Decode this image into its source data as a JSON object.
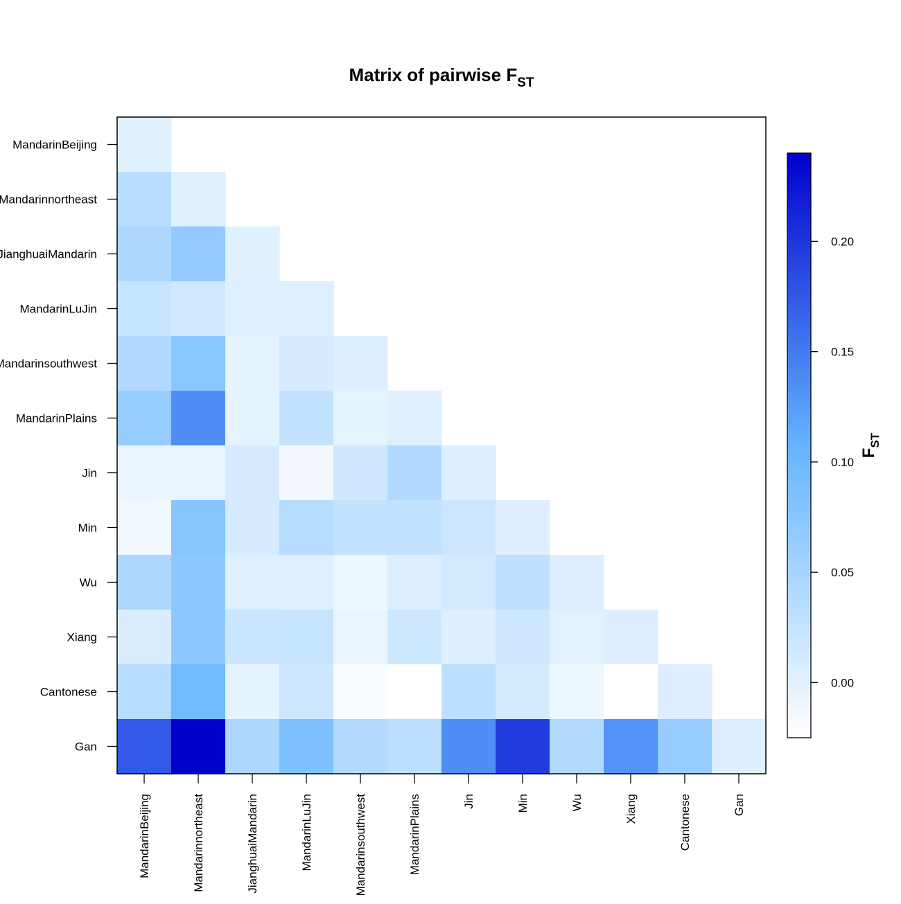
{
  "chart_data": {
    "type": "heatmap",
    "title": "Matrix of pairwise F",
    "title_subscript": "ST",
    "colorbar_label": "F",
    "colorbar_label_subscript": "ST",
    "categories": [
      "MandarinBeijing",
      "Mandarinnortheast",
      "JianghuaiMandarin",
      "MandarinLuJin",
      "Mandarinsouthwest",
      "MandarinPlains",
      "Jin",
      "Min",
      "Wu",
      "Xiang",
      "Cantonese",
      "Gan"
    ],
    "row_display_labels": [
      "MandarinBeijing",
      "Mandarinnortheast",
      "JianghuaiMandarin",
      "MandarinLuJin",
      "Mandarinsouthwest",
      "MandarinPlains",
      "Jin",
      "Min",
      "Wu",
      "Xiang",
      "Cantonese",
      "Gan"
    ],
    "col_display_labels": [
      "MandarinBeijing",
      "Mandarinnortheast",
      "JianghuaiMandarin",
      "MandarinLuJin",
      "Mandarinsouthwest",
      "MandarinPlains",
      "Jin",
      "Min",
      "Wu",
      "Xiang",
      "Cantonese",
      "Gan"
    ],
    "matrix": [
      [
        0.002
      ],
      [
        0.035,
        0.002
      ],
      [
        0.045,
        0.068,
        0.002
      ],
      [
        0.025,
        0.015,
        0.003,
        0.003
      ],
      [
        0.042,
        0.075,
        -0.003,
        0.01,
        0.005
      ],
      [
        0.065,
        0.135,
        -0.003,
        0.027,
        -0.003,
        0.003
      ],
      [
        -0.005,
        -0.005,
        0.01,
        -0.015,
        0.017,
        0.042,
        0.005
      ],
      [
        -0.012,
        0.078,
        0.01,
        0.037,
        0.027,
        0.027,
        0.019,
        0.005
      ],
      [
        0.045,
        0.073,
        0.003,
        0.003,
        -0.01,
        0.005,
        0.013,
        0.03,
        0.005
      ],
      [
        0.007,
        0.073,
        0.021,
        0.023,
        -0.005,
        0.018,
        0.005,
        0.017,
        -0.001,
        0.005
      ],
      [
        0.037,
        0.097,
        -0.003,
        0.019,
        -0.02,
        -0.025,
        0.032,
        0.011,
        -0.01,
        -0.025,
        0.005
      ],
      [
        0.175,
        0.24,
        0.045,
        0.085,
        0.04,
        0.032,
        0.135,
        0.195,
        0.04,
        0.13,
        0.065,
        0.005
      ]
    ],
    "color_range": [
      -0.025,
      0.24
    ],
    "colorbar_ticks": [
      0.0,
      0.05,
      0.1,
      0.15,
      0.2
    ],
    "colorbar_tick_labels": [
      "0.00",
      "0.05",
      "0.10",
      "0.15",
      "0.20"
    ],
    "colors": {
      "low": "#ffffff",
      "mid": "#64b4ff",
      "high": "#0000cd",
      "border": "#000000"
    },
    "legend_position": "right"
  }
}
